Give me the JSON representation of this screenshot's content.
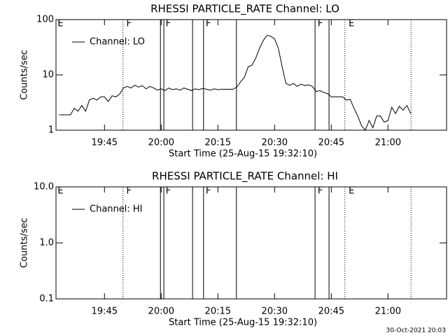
{
  "chart_data": [
    {
      "type": "line",
      "title": "RHESSI PARTICLE_RATE Channel: LO",
      "xlabel": "Start Time (25-Aug-15 19:32:10)",
      "ylabel": "Counts/sec",
      "log_y": true,
      "ylim": [
        1,
        100
      ],
      "yticks": [
        1,
        10,
        100
      ],
      "xlim": [
        1172.17,
        1275.5
      ],
      "xticks": [
        {
          "value": 1185,
          "label": "19:45"
        },
        {
          "value": 1200,
          "label": "20:00"
        },
        {
          "value": 1215,
          "label": "20:15"
        },
        {
          "value": 1230,
          "label": "20:30"
        },
        {
          "value": 1245,
          "label": "20:45"
        },
        {
          "value": 1260,
          "label": "21:00"
        }
      ],
      "legend": "upper left",
      "x": [
        1173,
        1174,
        1175,
        1176,
        1177,
        1178,
        1179,
        1180,
        1181,
        1182,
        1183,
        1184,
        1185,
        1186,
        1187,
        1188,
        1189,
        1190,
        1191,
        1192,
        1193,
        1194,
        1195,
        1196,
        1197,
        1198,
        1199,
        1200,
        1201,
        1202,
        1203,
        1204,
        1205,
        1206,
        1207,
        1208,
        1209,
        1210,
        1211,
        1212,
        1213,
        1214,
        1215,
        1216,
        1217,
        1218,
        1219,
        1220,
        1221,
        1222,
        1223,
        1224,
        1225,
        1226,
        1227,
        1228,
        1229,
        1230,
        1231,
        1232,
        1233,
        1234,
        1235,
        1236,
        1237,
        1238,
        1239,
        1240,
        1241,
        1242,
        1243,
        1244,
        1245,
        1246,
        1247,
        1248,
        1249,
        1250,
        1251,
        1252,
        1253,
        1254,
        1255,
        1256,
        1257,
        1258,
        1259,
        1260,
        1261,
        1262,
        1263,
        1264,
        1265,
        1266
      ],
      "series": [
        {
          "name": "Channel: LO",
          "color": "#000000",
          "values": [
            1.9,
            1.9,
            1.9,
            1.9,
            2.5,
            2.2,
            2.8,
            2.2,
            3.5,
            3.8,
            3.5,
            4,
            4,
            3.3,
            4.2,
            4,
            4.5,
            5.8,
            6.2,
            5.8,
            6.5,
            6,
            6.4,
            5.6,
            6.2,
            5.8,
            5.3,
            5.6,
            5.2,
            5.8,
            5.4,
            5.6,
            5.3,
            5.8,
            5.5,
            5.2,
            5.6,
            5.4,
            5.7,
            5.5,
            5.3,
            5.6,
            5.4,
            5.5,
            5.5,
            5.5,
            5.5,
            6,
            7.5,
            9,
            14,
            15,
            20,
            30,
            42,
            52,
            50,
            45,
            30,
            14,
            7,
            6.5,
            7,
            6.2,
            6.8,
            6.4,
            6.6,
            6.2,
            5,
            5.2,
            4.8,
            4.6,
            4,
            4,
            4,
            4,
            3.5,
            3.6,
            2.5,
            1.8,
            1.2,
            1,
            1.5,
            1.1,
            1.8,
            1.8,
            1.4,
            1.5,
            2.6,
            2,
            2.7,
            2.3,
            2.8,
            2
          ]
        }
      ],
      "vlines": [
        {
          "x": 1189.9,
          "style": "dotted"
        },
        {
          "x": 1199.8,
          "style": "solid"
        },
        {
          "x": 1200.7,
          "style": "solid"
        },
        {
          "x": 1208.3,
          "style": "solid"
        },
        {
          "x": 1211.2,
          "style": "solid"
        },
        {
          "x": 1219.9,
          "style": "solid"
        },
        {
          "x": 1240.7,
          "style": "solid"
        },
        {
          "x": 1244.4,
          "style": "solid"
        },
        {
          "x": 1248.6,
          "style": "dotted"
        },
        {
          "x": 1266.1,
          "style": "dotted"
        }
      ],
      "flags": [
        {
          "x": 1172.4,
          "label": "E"
        },
        {
          "x": 1190.6,
          "label": "F"
        },
        {
          "x": 1201.0,
          "label": "F"
        },
        {
          "x": 1211.6,
          "label": "F"
        },
        {
          "x": 1241.2,
          "label": "F"
        },
        {
          "x": 1249.4,
          "label": "E"
        }
      ]
    },
    {
      "type": "line",
      "title": "RHESSI PARTICLE_RATE Channel: HI",
      "xlabel": "Start Time (25-Aug-15 19:32:10)",
      "ylabel": "Counts/sec",
      "log_y": true,
      "ylim": [
        0.1,
        10
      ],
      "yticks": [
        0.1,
        {
          "value": 1,
          "label": "1.0"
        },
        {
          "value": 10,
          "label": "10.0"
        }
      ],
      "xlim": [
        1172.17,
        1275.5
      ],
      "xticks": [
        {
          "value": 1185,
          "label": "19:45"
        },
        {
          "value": 1200,
          "label": "20:00"
        },
        {
          "value": 1215,
          "label": "20:15"
        },
        {
          "value": 1230,
          "label": "20:30"
        },
        {
          "value": 1245,
          "label": "20:45"
        },
        {
          "value": 1260,
          "label": "21:00"
        }
      ],
      "legend": "upper left",
      "x": [],
      "series": [
        {
          "name": "Channel: HI",
          "color": "#000000",
          "values": []
        }
      ],
      "vlines": [
        {
          "x": 1189.9,
          "style": "dotted"
        },
        {
          "x": 1199.8,
          "style": "solid"
        },
        {
          "x": 1200.7,
          "style": "solid"
        },
        {
          "x": 1208.3,
          "style": "solid"
        },
        {
          "x": 1211.2,
          "style": "solid"
        },
        {
          "x": 1219.9,
          "style": "solid"
        },
        {
          "x": 1240.7,
          "style": "solid"
        },
        {
          "x": 1244.4,
          "style": "solid"
        },
        {
          "x": 1248.6,
          "style": "dotted"
        },
        {
          "x": 1266.1,
          "style": "dotted"
        }
      ],
      "flags": [
        {
          "x": 1172.4,
          "label": "E"
        },
        {
          "x": 1190.6,
          "label": "F"
        },
        {
          "x": 1201.0,
          "label": "F"
        },
        {
          "x": 1211.6,
          "label": "F"
        },
        {
          "x": 1241.2,
          "label": "F"
        },
        {
          "x": 1249.4,
          "label": "E"
        }
      ]
    }
  ],
  "footer": "30-Oct-2021 20:03"
}
